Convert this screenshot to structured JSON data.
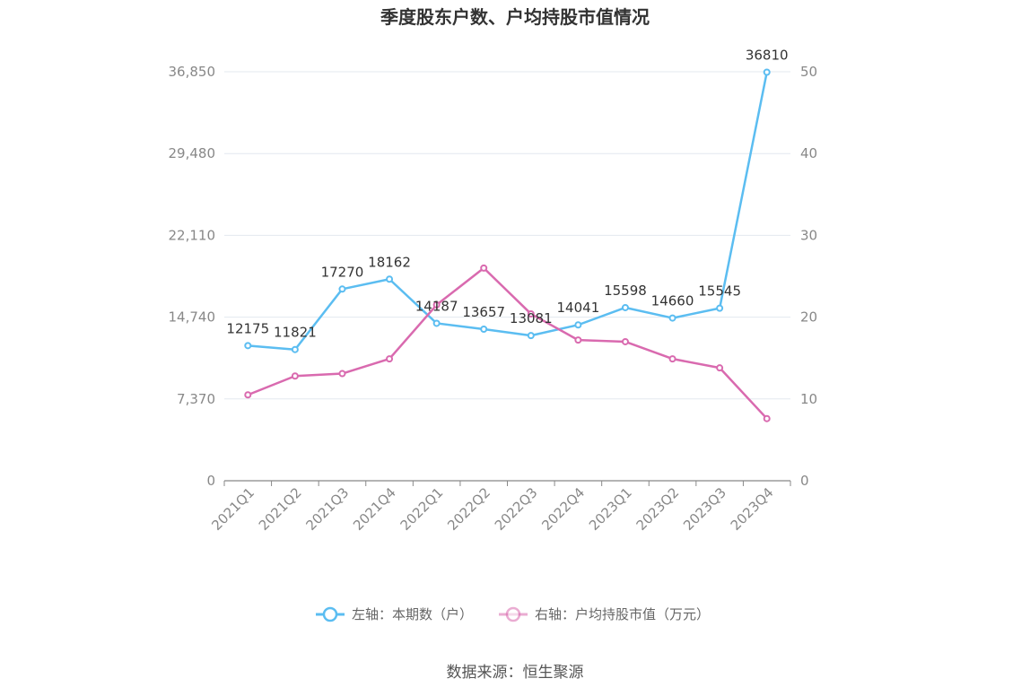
{
  "chart_data": {
    "type": "line",
    "title": "季度股东户数、户均持股市值情况",
    "categories": [
      "2021Q1",
      "2021Q2",
      "2021Q3",
      "2021Q4",
      "2022Q1",
      "2022Q2",
      "2022Q3",
      "2022Q4",
      "2023Q1",
      "2023Q2",
      "2023Q3",
      "2023Q4"
    ],
    "left_axis": {
      "min": 0,
      "max": 36850,
      "ticks": [
        "0",
        "7,370",
        "14,740",
        "22,110",
        "29,480",
        "36,850"
      ],
      "tick_values": [
        0,
        7370,
        14740,
        22110,
        29480,
        36850
      ]
    },
    "right_axis": {
      "min": 0,
      "max": 50,
      "ticks": [
        "0",
        "10",
        "20",
        "30",
        "40",
        "50"
      ],
      "tick_values": [
        0,
        10,
        20,
        30,
        40,
        50
      ]
    },
    "grid": true,
    "legend_position": "bottom",
    "series": [
      {
        "name": "左轴：本期数（户）",
        "axis": "left",
        "color": "#5bbdf1",
        "values": [
          12175,
          11821,
          17270,
          18162,
          14187,
          13657,
          13081,
          14041,
          15598,
          14660,
          15545,
          36810
        ],
        "labels": [
          "12175",
          "11821",
          "17270",
          "18162",
          "14187",
          "13657",
          "13081",
          "14041",
          "15598",
          "14660",
          "15545",
          "36810"
        ]
      },
      {
        "name": "右轴：户均持股市值（万元）",
        "axis": "right",
        "color": "#d96aaf",
        "values": [
          10.5,
          12.8,
          13.1,
          14.9,
          21.5,
          26.0,
          20.4,
          17.2,
          17.0,
          14.9,
          13.8,
          7.6
        ]
      }
    ]
  },
  "source": "数据来源：恒生聚源"
}
